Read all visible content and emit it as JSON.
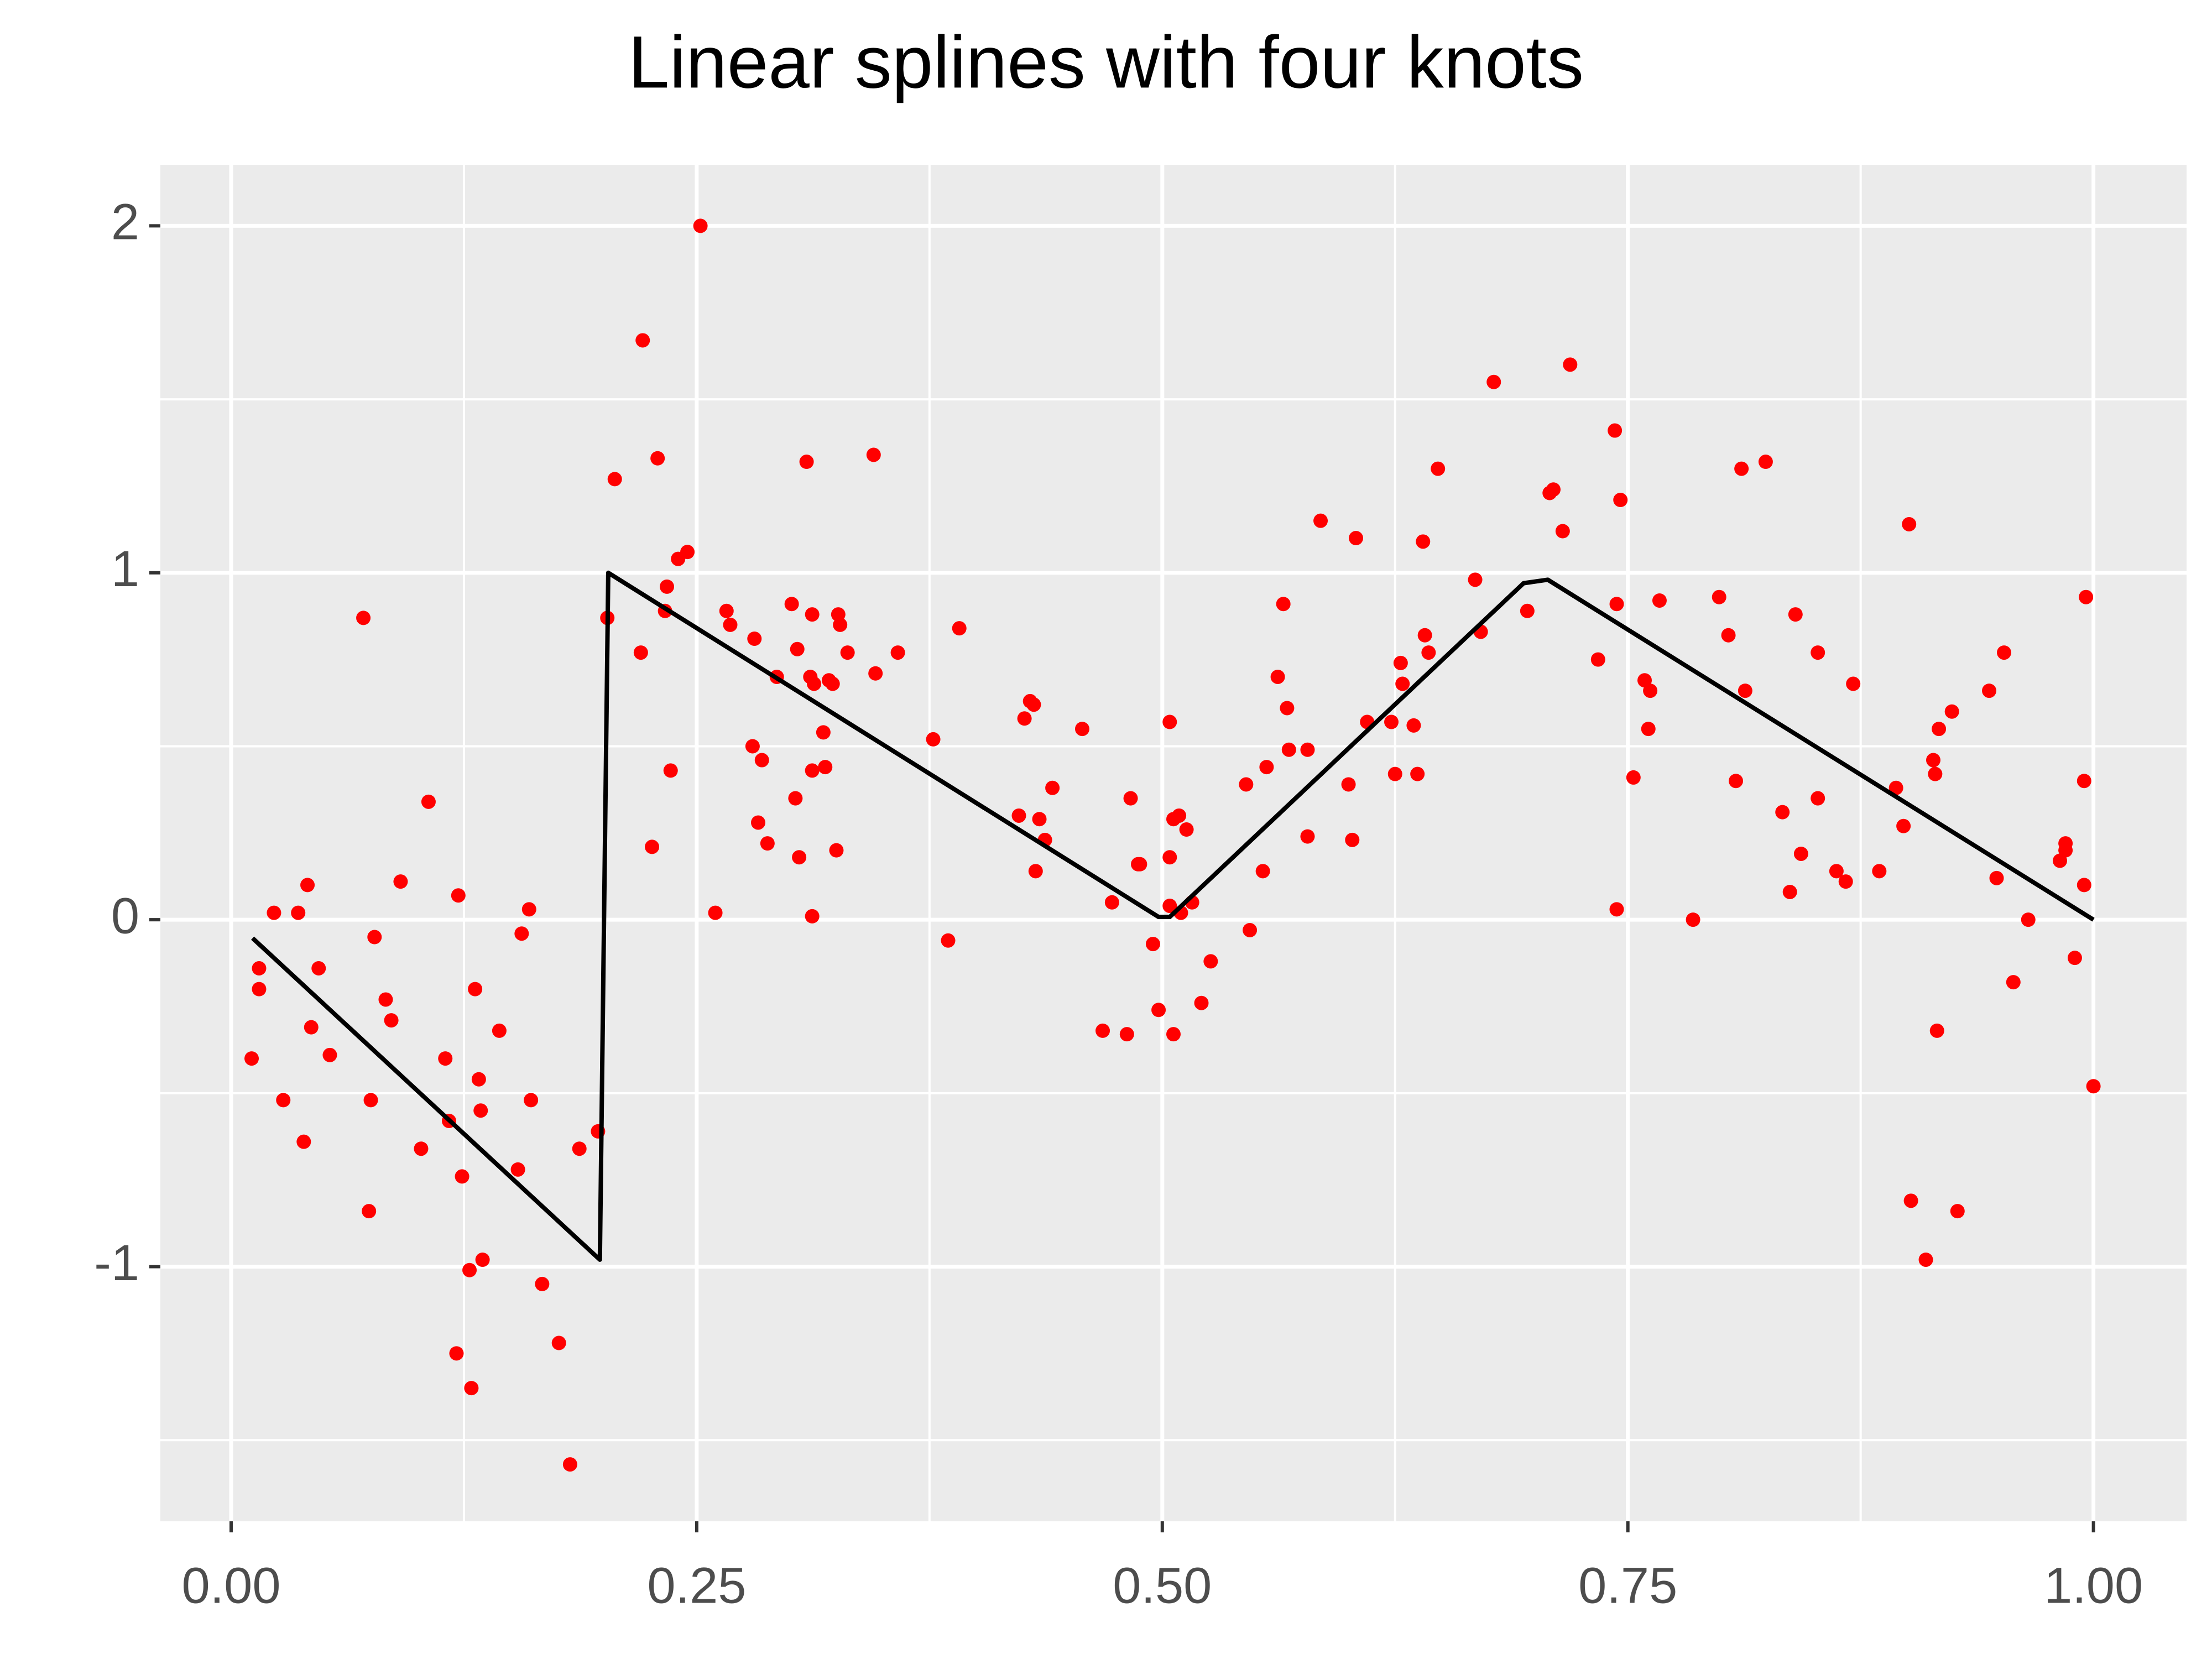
{
  "chart_data": {
    "type": "scatter",
    "title": "Linear splines with four knots",
    "xlim": [
      -0.038,
      1.05
    ],
    "ylim": [
      -1.734,
      2.176
    ],
    "xticks": [
      {
        "value": 0,
        "label": "0.00"
      },
      {
        "value": 0.25,
        "label": "0.25"
      },
      {
        "value": 0.5,
        "label": "0.50"
      },
      {
        "value": 0.75,
        "label": "0.75"
      },
      {
        "value": 1,
        "label": "1.00"
      }
    ],
    "yticks": [
      -1,
      0,
      1,
      2
    ],
    "grid": true,
    "series": [
      {
        "type": "scatter",
        "color": "#ff0000",
        "x": [
          0.011,
          0.015,
          0.015,
          0.023,
          0.028,
          0.036,
          0.039,
          0.041,
          0.043,
          0.047,
          0.053,
          0.071,
          0.074,
          0.075,
          0.077,
          0.083,
          0.086,
          0.091,
          0.102,
          0.106,
          0.115,
          0.117,
          0.122,
          0.124,
          0.121,
          0.128,
          0.129,
          0.131,
          0.133,
          0.134,
          0.135,
          0.144,
          0.154,
          0.156,
          0.16,
          0.161,
          0.167,
          0.176,
          0.182,
          0.187,
          0.197,
          0.202,
          0.206,
          0.22,
          0.221,
          0.226,
          0.229,
          0.233,
          0.234,
          0.236,
          0.24,
          0.245,
          0.252,
          0.26,
          0.266,
          0.268,
          0.28,
          0.281,
          0.283,
          0.285,
          0.288,
          0.293,
          0.301,
          0.303,
          0.305,
          0.304,
          0.309,
          0.311,
          0.312,
          0.312,
          0.313,
          0.312,
          0.318,
          0.319,
          0.321,
          0.323,
          0.325,
          0.326,
          0.327,
          0.331,
          0.345,
          0.346,
          0.358,
          0.377,
          0.385,
          0.391,
          0.423,
          0.426,
          0.429,
          0.431,
          0.432,
          0.434,
          0.437,
          0.441,
          0.457,
          0.468,
          0.473,
          0.481,
          0.483,
          0.487,
          0.488,
          0.495,
          0.498,
          0.504,
          0.504,
          0.504,
          0.506,
          0.506,
          0.509,
          0.51,
          0.513,
          0.516,
          0.521,
          0.526,
          0.545,
          0.547,
          0.554,
          0.556,
          0.562,
          0.565,
          0.567,
          0.568,
          0.578,
          0.578,
          0.585,
          0.6,
          0.602,
          0.604,
          0.61,
          0.623,
          0.625,
          0.628,
          0.629,
          0.635,
          0.637,
          0.64,
          0.641,
          0.643,
          0.648,
          0.668,
          0.671,
          0.678,
          0.696,
          0.708,
          0.71,
          0.715,
          0.719,
          0.734,
          0.743,
          0.744,
          0.744,
          0.746,
          0.753,
          0.759,
          0.761,
          0.762,
          0.767,
          0.785,
          0.799,
          0.804,
          0.808,
          0.811,
          0.813,
          0.824,
          0.833,
          0.837,
          0.84,
          0.843,
          0.852,
          0.852,
          0.862,
          0.867,
          0.871,
          0.885,
          0.894,
          0.898,
          0.901,
          0.902,
          0.91,
          0.914,
          0.915,
          0.916,
          0.917,
          0.924,
          0.927,
          0.944,
          0.948,
          0.952,
          0.957,
          0.965,
          0.982,
          0.985,
          0.985,
          0.99,
          0.995,
          0.995,
          0.996,
          1.0
        ],
        "values": [
          -0.4,
          -0.14,
          -0.2,
          0.02,
          -0.52,
          0.02,
          -0.64,
          0.1,
          -0.31,
          -0.14,
          -0.39,
          0.87,
          -0.84,
          -0.52,
          -0.05,
          -0.23,
          -0.29,
          0.11,
          -0.66,
          0.34,
          -0.4,
          -0.58,
          0.07,
          -0.74,
          -1.25,
          -1.01,
          -1.35,
          -0.2,
          -0.46,
          -0.55,
          -0.98,
          -0.32,
          -0.72,
          -0.04,
          0.03,
          -0.52,
          -1.05,
          -1.22,
          -1.57,
          -0.66,
          -0.61,
          0.87,
          1.27,
          0.77,
          1.67,
          0.21,
          1.33,
          0.89,
          0.96,
          0.43,
          1.04,
          1.06,
          2.0,
          0.02,
          0.89,
          0.85,
          0.5,
          0.81,
          0.28,
          0.46,
          0.22,
          0.7,
          0.91,
          0.35,
          0.18,
          0.78,
          1.32,
          0.7,
          0.01,
          0.88,
          0.68,
          0.43,
          0.54,
          0.44,
          0.69,
          0.68,
          0.2,
          0.88,
          0.85,
          0.77,
          1.34,
          0.71,
          0.77,
          0.52,
          -0.06,
          0.84,
          0.3,
          0.58,
          0.63,
          0.62,
          0.14,
          0.29,
          0.23,
          0.38,
          0.55,
          -0.32,
          0.05,
          -0.33,
          0.35,
          0.16,
          0.16,
          -0.07,
          -0.26,
          0.18,
          0.57,
          0.04,
          0.29,
          -0.33,
          0.3,
          0.02,
          0.26,
          0.05,
          -0.24,
          -0.12,
          0.39,
          -0.03,
          0.14,
          0.44,
          0.7,
          0.91,
          0.61,
          0.49,
          0.49,
          0.24,
          1.15,
          0.39,
          0.23,
          1.1,
          0.57,
          0.57,
          0.42,
          0.74,
          0.68,
          0.56,
          0.42,
          1.09,
          0.82,
          0.77,
          1.3,
          0.98,
          0.83,
          1.55,
          0.89,
          1.23,
          1.24,
          1.12,
          1.6,
          0.75,
          1.41,
          0.03,
          0.91,
          1.21,
          0.41,
          0.69,
          0.55,
          0.66,
          0.92,
          0.0,
          0.93,
          0.82,
          0.4,
          1.3,
          0.66,
          1.32,
          0.31,
          0.08,
          0.88,
          0.19,
          0.77,
          0.35,
          0.14,
          0.11,
          0.68,
          0.14,
          0.38,
          0.27,
          1.14,
          -0.81,
          -0.98,
          0.46,
          0.42,
          -0.32,
          0.55,
          0.6,
          -0.84,
          0.66,
          0.12,
          0.77,
          -0.18,
          0.0,
          0.17,
          0.2,
          0.22,
          -0.11,
          0.1,
          0.4,
          0.93,
          -0.48
        ]
      },
      {
        "type": "line",
        "color": "#000000",
        "x": [
          0.0115,
          0.198,
          0.2025,
          0.498,
          0.504,
          0.694,
          0.707,
          1.0
        ],
        "values": [
          -0.053,
          -0.98,
          1.0,
          0.008,
          0.008,
          0.97,
          0.98,
          0
        ]
      }
    ]
  }
}
